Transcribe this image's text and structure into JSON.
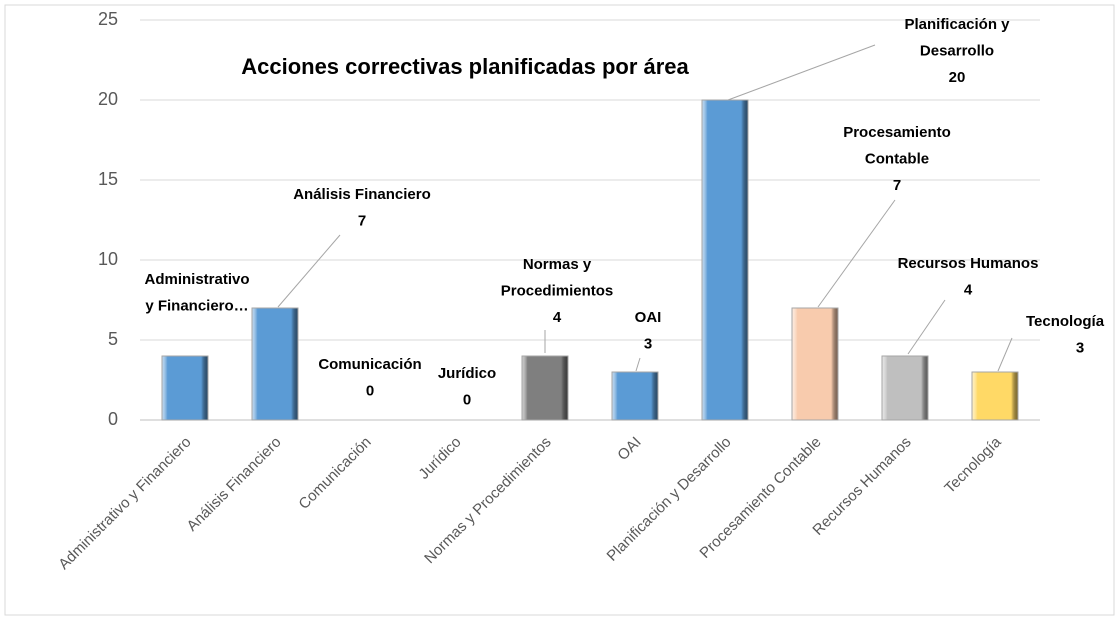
{
  "chart_data": {
    "type": "bar",
    "title": "Acciones correctivas planificadas por área",
    "categories": [
      "Administrativo y Financiero",
      "Análisis Financiero",
      "Comunicación",
      "Jurídico",
      "Normas  y Procedimientos",
      "OAI",
      "Planificación y Desarrollo",
      "Procesamiento Contable",
      "Recursos Humanos",
      "Tecnología"
    ],
    "values": [
      4,
      7,
      0,
      0,
      4,
      3,
      20,
      7,
      4,
      3
    ],
    "colors": [
      "#5b9bd5",
      "#5b9bd5",
      "#5b9bd5",
      "#5b9bd5",
      "#7f7f7f",
      "#5b9bd5",
      "#5b9bd5",
      "#f8cbad",
      "#bfbfbf",
      "#ffd966"
    ],
    "data_labels": [
      {
        "lines": [
          "Administrativo",
          "y Financiero…"
        ],
        "show_value": false
      },
      {
        "lines": [
          "Análisis Financiero"
        ],
        "show_value": true
      },
      {
        "lines": [
          "Comunicación"
        ],
        "show_value": true
      },
      {
        "lines": [
          "Jurídico"
        ],
        "show_value": true
      },
      {
        "lines": [
          "Normas  y",
          "Procedimientos"
        ],
        "show_value": true
      },
      {
        "lines": [
          "OAI"
        ],
        "show_value": true
      },
      {
        "lines": [
          "Planificación y",
          "Desarrollo"
        ],
        "show_value": true
      },
      {
        "lines": [
          "Procesamiento",
          "Contable"
        ],
        "show_value": true
      },
      {
        "lines": [
          "Recursos Humanos"
        ],
        "show_value": true
      },
      {
        "lines": [
          "Tecnología"
        ],
        "show_value": true
      }
    ],
    "ylim": [
      0,
      25
    ],
    "yticks": [
      0,
      5,
      10,
      15,
      20,
      25
    ],
    "grid": true
  }
}
